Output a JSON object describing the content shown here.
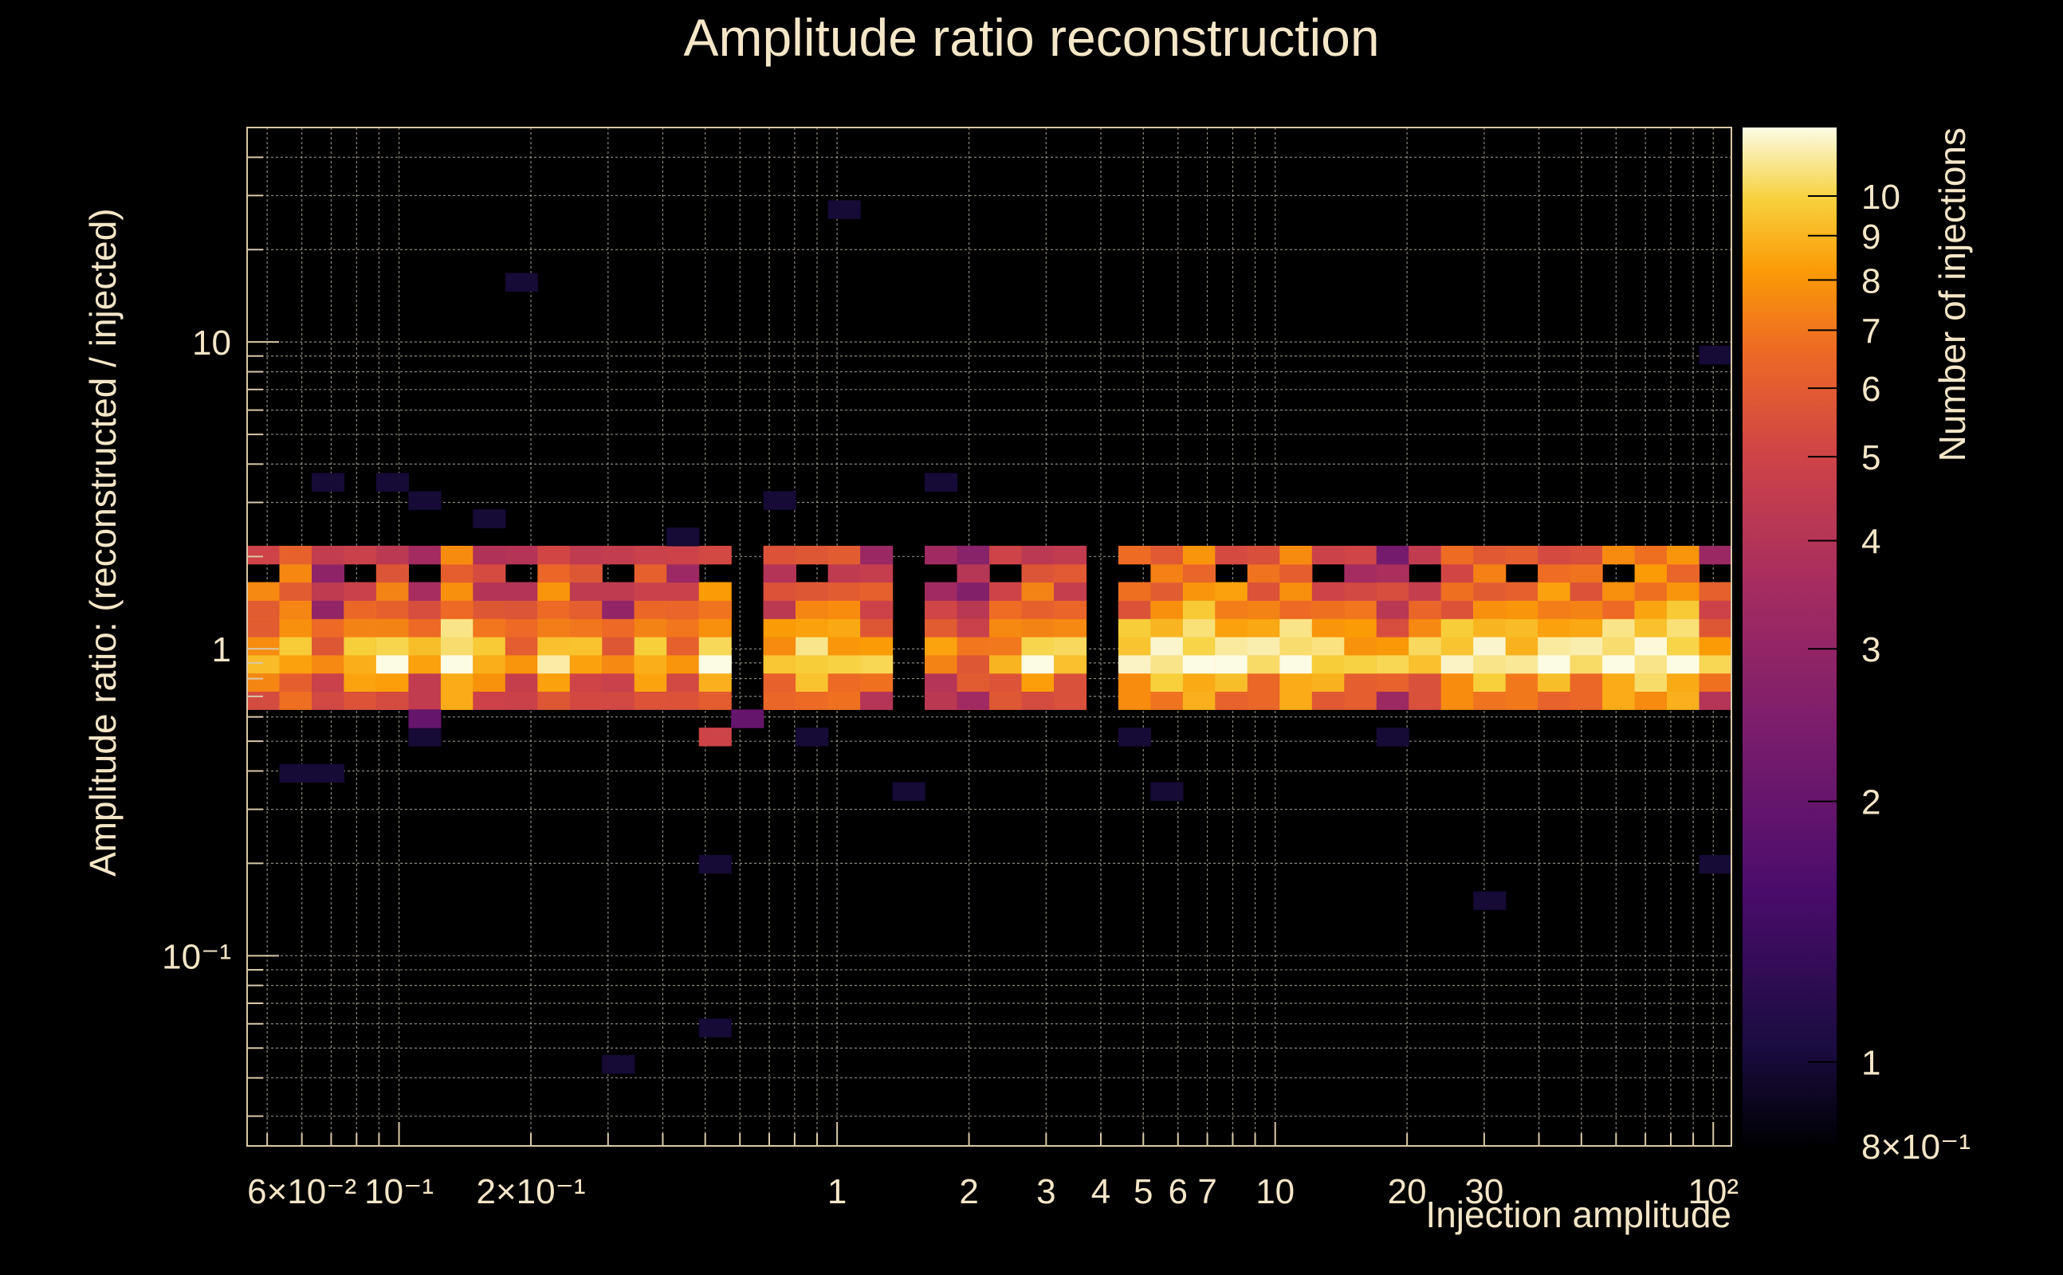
{
  "chart_data": {
    "type": "heatmap",
    "title": "Amplitude ratio reconstruction",
    "xlabel": "Injection amplitude",
    "ylabel": "Amplitude ratio: (reconstructed / injected)",
    "zlabel": "Number of injections",
    "x_scale": "log",
    "y_scale": "log",
    "z_scale": "log",
    "xlim": [
      0.045,
      110
    ],
    "ylim": [
      0.024,
      50
    ],
    "zlim": [
      0.8,
      12
    ],
    "grid": true,
    "colormap": "inferno",
    "x_tick_labels": [
      {
        "value": 0.06,
        "label": "6×10⁻²"
      },
      {
        "value": 0.1,
        "label": "10⁻¹"
      },
      {
        "value": 0.2,
        "label": "2×10⁻¹"
      },
      {
        "value": 1,
        "label": "1"
      },
      {
        "value": 2,
        "label": "2"
      },
      {
        "value": 3,
        "label": "3"
      },
      {
        "value": 4,
        "label": "4"
      },
      {
        "value": 5,
        "label": "5"
      },
      {
        "value": 6,
        "label": "6"
      },
      {
        "value": 7,
        "label": "7"
      },
      {
        "value": 10,
        "label": "10"
      },
      {
        "value": 20,
        "label": "20"
      },
      {
        "value": 30,
        "label": "30"
      },
      {
        "value": 100,
        "label": "10²"
      }
    ],
    "y_tick_labels": [
      {
        "value": 10,
        "label": "10"
      },
      {
        "value": 1,
        "label": "1"
      },
      {
        "value": 0.1,
        "label": "10⁻¹"
      }
    ],
    "z_tick_labels": [
      {
        "value": 10,
        "label": "10"
      },
      {
        "value": 9,
        "label": "9"
      },
      {
        "value": 8,
        "label": "8"
      },
      {
        "value": 7,
        "label": "7"
      },
      {
        "value": 6,
        "label": "6"
      },
      {
        "value": 5,
        "label": "5"
      },
      {
        "value": 4,
        "label": "4"
      },
      {
        "value": 3,
        "label": "3"
      },
      {
        "value": 2,
        "label": "2"
      },
      {
        "value": 1,
        "label": "1"
      },
      {
        "value": 0.8,
        "label": "8×10⁻¹"
      }
    ],
    "core_band": [
      [
        0.05,
        6,
        8
      ],
      [
        0.06,
        6,
        9
      ],
      [
        0.07,
        3,
        7
      ],
      [
        0.08,
        5,
        10
      ],
      [
        0.09,
        6,
        8
      ],
      [
        0.1,
        5,
        11
      ],
      [
        0.12,
        3,
        9
      ],
      [
        0.14,
        6,
        12
      ],
      [
        0.17,
        4,
        10
      ],
      [
        0.2,
        3,
        8
      ],
      [
        0.24,
        6,
        10
      ],
      [
        0.28,
        4,
        9
      ],
      [
        0.33,
        3,
        7
      ],
      [
        0.4,
        5,
        10
      ],
      [
        0.48,
        4,
        8
      ],
      [
        0.57,
        6,
        11
      ],
      [
        0.68,
        5,
        10
      ],
      [
        0.8,
        4,
        9
      ],
      [
        0.95,
        6,
        11
      ],
      [
        1.1,
        5,
        10
      ],
      [
        1.3,
        4,
        9
      ],
      [
        1.6,
        3,
        8
      ],
      [
        1.9,
        4,
        8
      ],
      [
        2.2,
        3,
        7
      ],
      [
        2.6,
        4,
        9
      ],
      [
        3.1,
        5,
        11
      ],
      [
        3.7,
        4,
        10
      ],
      [
        4.4,
        5,
        11
      ],
      [
        5.2,
        6,
        12
      ],
      [
        6.2,
        7,
        12
      ],
      [
        7.4,
        6,
        12
      ],
      [
        8.8,
        5,
        11
      ],
      [
        10.5,
        6,
        12
      ],
      [
        12.5,
        5,
        11
      ],
      [
        15,
        4,
        10
      ],
      [
        18,
        3,
        9
      ],
      [
        21,
        4,
        10
      ],
      [
        25,
        5,
        11
      ],
      [
        30,
        6,
        12
      ],
      [
        36,
        5,
        11
      ],
      [
        43,
        6,
        12
      ],
      [
        51,
        5,
        11
      ],
      [
        61,
        6,
        12
      ],
      [
        73,
        7,
        12
      ],
      [
        87,
        7,
        12
      ],
      [
        104,
        4,
        9
      ]
    ],
    "outliers": [
      [
        1.0,
        28,
        1.0
      ],
      [
        0.2,
        15,
        1.0
      ],
      [
        0.065,
        3.7,
        1.0
      ],
      [
        0.1,
        3.3,
        1.0
      ],
      [
        0.12,
        2.9,
        1.0
      ],
      [
        0.16,
        2.6,
        1.0
      ],
      [
        0.42,
        2.4,
        1.0
      ],
      [
        0.72,
        2.9,
        1.0
      ],
      [
        1.6,
        3.3,
        1.0
      ],
      [
        104,
        8.7,
        1.0
      ],
      [
        0.065,
        0.42,
        1.0
      ],
      [
        0.06,
        0.42,
        1.0
      ],
      [
        0.12,
        0.52,
        1.0
      ],
      [
        0.12,
        0.56,
        2.0
      ],
      [
        0.5,
        0.52,
        5.0
      ],
      [
        0.65,
        0.58,
        2.0
      ],
      [
        0.9,
        0.52,
        1.0
      ],
      [
        1.5,
        0.35,
        1.0
      ],
      [
        4.5,
        0.52,
        1.0
      ],
      [
        5.2,
        0.36,
        1.0
      ],
      [
        0.5,
        0.2,
        1.0
      ],
      [
        0.33,
        0.046,
        1.0
      ],
      [
        0.55,
        0.055,
        1.0
      ],
      [
        30,
        0.15,
        1.0
      ],
      [
        95,
        0.2,
        1.0
      ],
      [
        20,
        0.52,
        1.0
      ]
    ]
  }
}
